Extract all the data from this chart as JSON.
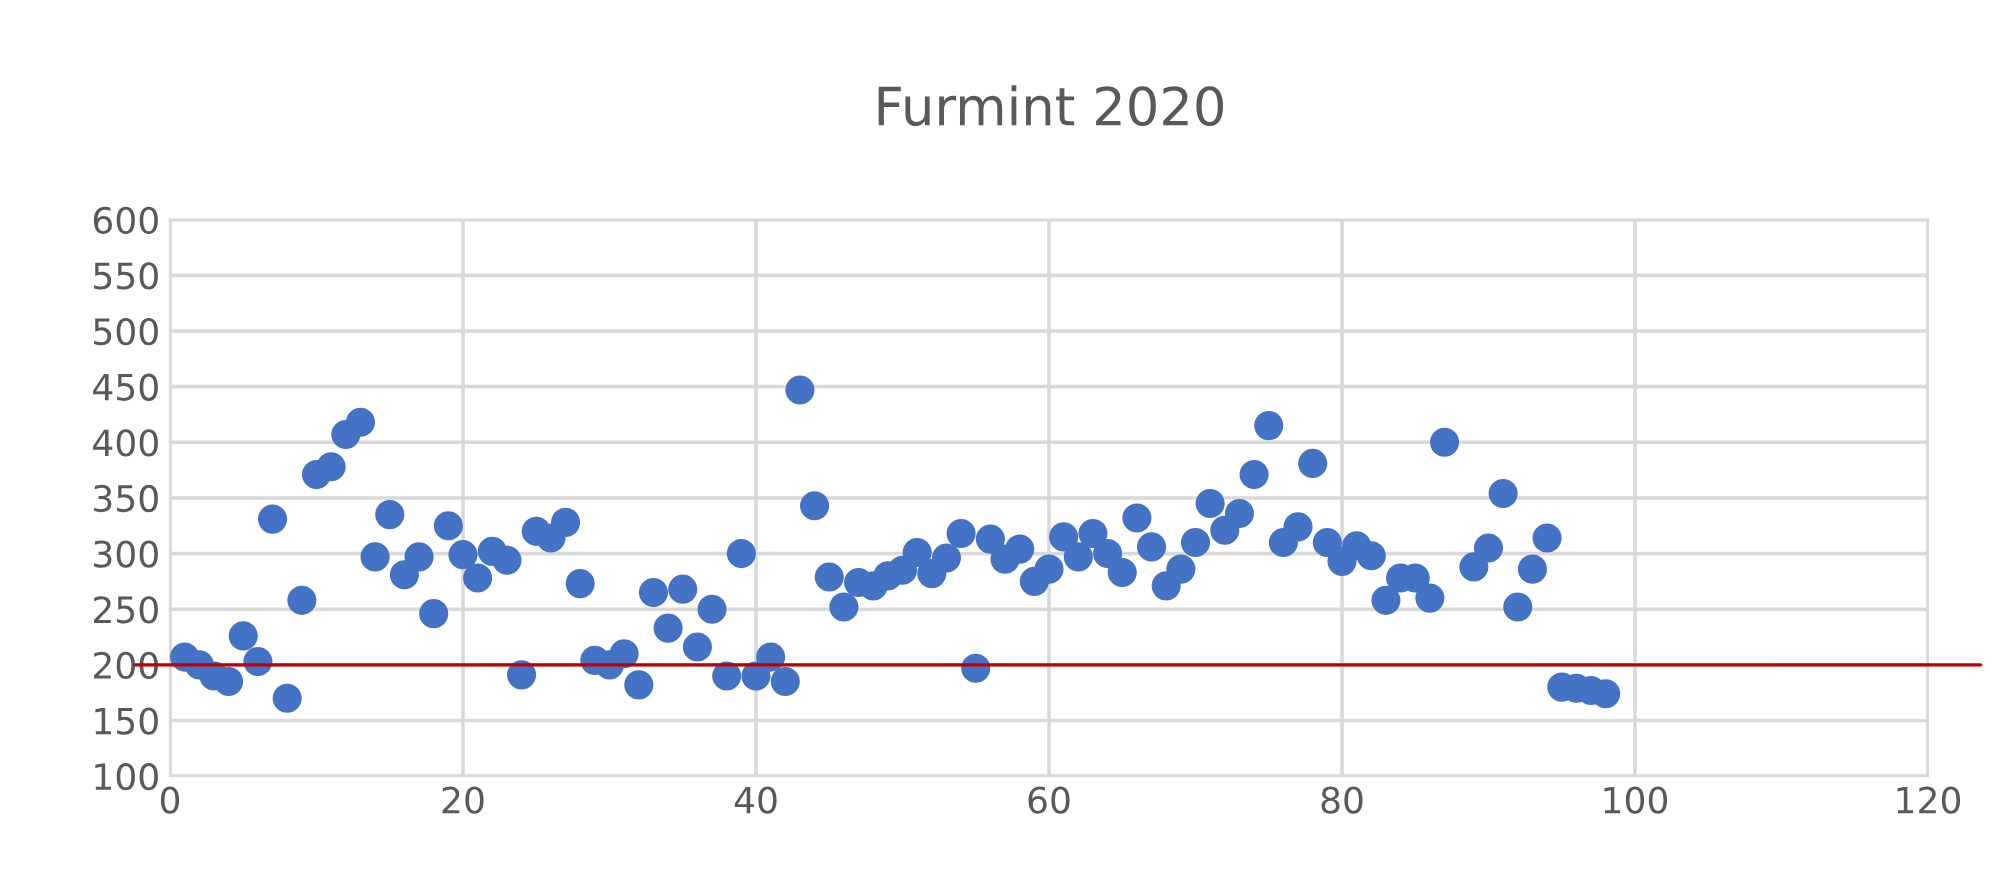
{
  "chart_data": {
    "type": "scatter",
    "title": "Furmint 2020",
    "x": [
      1,
      2,
      3,
      4,
      5,
      6,
      7,
      8,
      9,
      10,
      11,
      12,
      13,
      14,
      15,
      16,
      17,
      18,
      19,
      20,
      21,
      22,
      23,
      24,
      25,
      26,
      27,
      28,
      29,
      30,
      31,
      32,
      33,
      34,
      35,
      36,
      37,
      38,
      39,
      40,
      41,
      42,
      43,
      44,
      45,
      46,
      47,
      48,
      49,
      50,
      51,
      52,
      53,
      54,
      55,
      56,
      57,
      58,
      59,
      60,
      61,
      62,
      63,
      64,
      65,
      66,
      67,
      68,
      69,
      70,
      71,
      72,
      73,
      74,
      75,
      76,
      77,
      78,
      79,
      80,
      81,
      82,
      83,
      84,
      85,
      86,
      87,
      88,
      89,
      90,
      91,
      92,
      93,
      94,
      95,
      96,
      97,
      98
    ],
    "series": [
      {
        "color": "#4472c4",
        "values": [
          207,
          200,
          190,
          185,
          226,
          203,
          331,
          170,
          258,
          371,
          378,
          407,
          418,
          297,
          335,
          281,
          297,
          246,
          325,
          299,
          278,
          302,
          294,
          191,
          320,
          314,
          328,
          273,
          204,
          200,
          210,
          182,
          265,
          233,
          268,
          216,
          250,
          190,
          300,
          190,
          207,
          185,
          447,
          343,
          279,
          252,
          274,
          271,
          280,
          285,
          301,
          282,
          296,
          318,
          197,
          313,
          295,
          304,
          275,
          286,
          315,
          297,
          318,
          300,
          283,
          332,
          306,
          271,
          286,
          310,
          345,
          321,
          336,
          371,
          415,
          310,
          324,
          381,
          310,
          293,
          307,
          298,
          258,
          278,
          278,
          260,
          400,
          null,
          288,
          305,
          354,
          252,
          286,
          314,
          180,
          179,
          177,
          174
        ]
      }
    ],
    "xlim": [
      0,
      120
    ],
    "xticks": [
      0,
      20,
      40,
      60,
      80,
      100,
      120
    ],
    "ylim": [
      100,
      600
    ],
    "yticks": [
      100,
      150,
      200,
      250,
      300,
      350,
      400,
      450,
      500,
      550,
      600
    ],
    "grid": true,
    "marker": "circle",
    "ref_lines": [
      {
        "axis": "y",
        "value": 200,
        "color": "#c00000"
      }
    ]
  }
}
